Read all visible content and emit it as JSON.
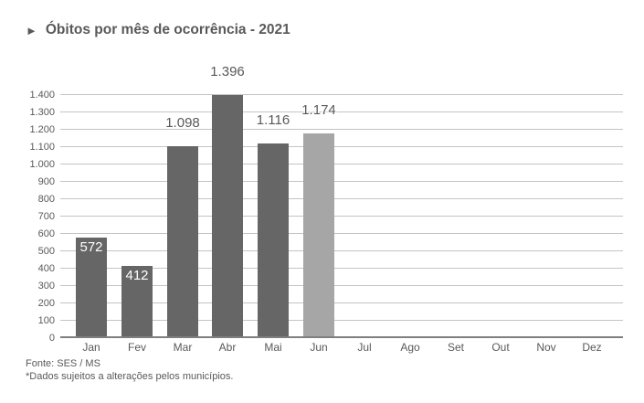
{
  "title": {
    "arrow": "►",
    "text": "Óbitos por mês de ocorrência - 2021"
  },
  "footer": {
    "source": "Fonte: SES / MS",
    "note": "*Dados sujeitos a alterações pelos municípios."
  },
  "colors": {
    "bar": "#666666",
    "bar_highlight": "#a6a6a6",
    "gridline": "#c4c4c4",
    "axis": "#7f7f7f",
    "text": "#595959",
    "label_inside": "#ffffff"
  },
  "chart_data": {
    "type": "bar",
    "title": "Óbitos por mês de ocorrência - 2021",
    "categories": [
      "Jan",
      "Fev",
      "Mar",
      "Abr",
      "Mai",
      "Jun",
      "Jul",
      "Ago",
      "Set",
      "Out",
      "Nov",
      "Dez"
    ],
    "values": [
      572,
      412,
      1098,
      1396,
      1116,
      1174,
      null,
      null,
      null,
      null,
      null,
      null
    ],
    "data_labels": [
      "572",
      "412",
      "1.098",
      "1.396",
      "1.116",
      "1.174",
      "",
      "",
      "",
      "",
      "",
      ""
    ],
    "label_placement": [
      "inside",
      "inside",
      "outside",
      "outside",
      "outside",
      "outside",
      "",
      "",
      "",
      "",
      "",
      ""
    ],
    "highlighted_index": 5,
    "ylim": [
      0,
      1400
    ],
    "ytick_step": 100,
    "ytick_labels": [
      "0",
      "100",
      "200",
      "300",
      "400",
      "500",
      "600",
      "700",
      "800",
      "900",
      "1.000",
      "1.100",
      "1.200",
      "1.300",
      "1.400"
    ],
    "grid": true,
    "legend": "none",
    "xlabel": "",
    "ylabel": ""
  }
}
